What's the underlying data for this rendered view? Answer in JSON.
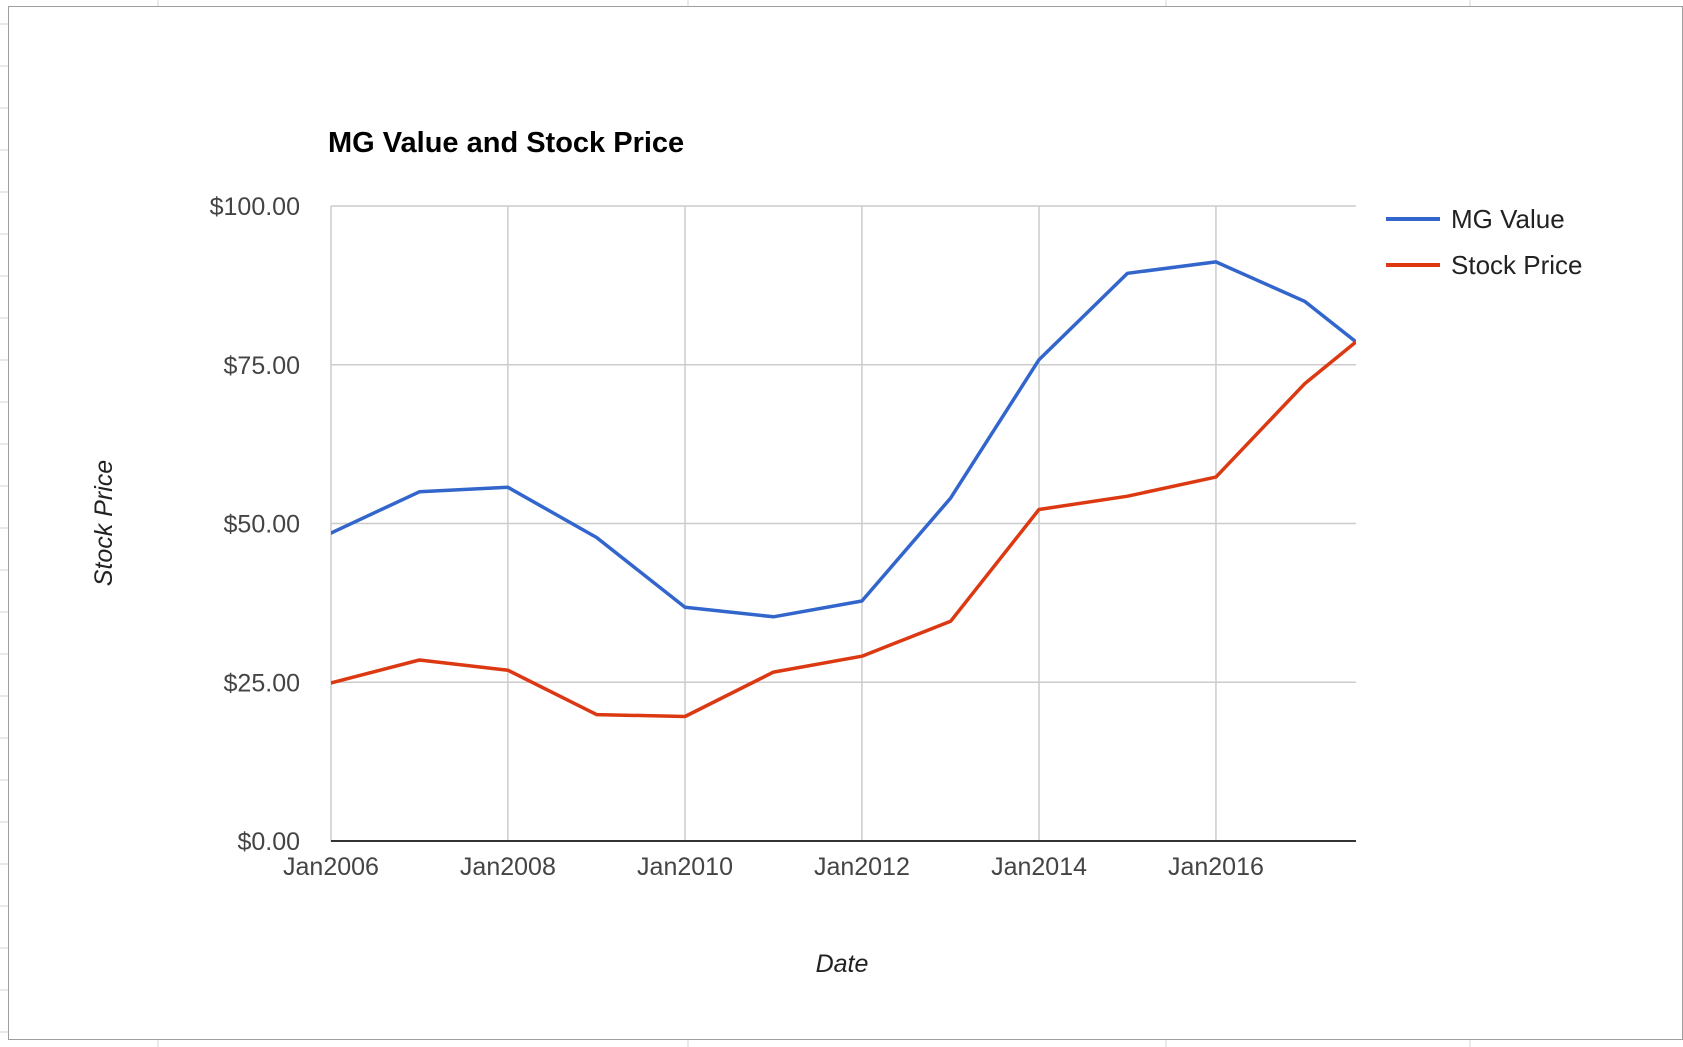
{
  "chart_data": {
    "type": "line",
    "title": "MG Value and Stock Price",
    "xlabel": "Date",
    "ylabel": "Stock Price",
    "ylim": [
      0,
      100
    ],
    "xlim": [
      "2006-01-01",
      "2017-08-01"
    ],
    "y_ticks": [
      0,
      25,
      50,
      75,
      100
    ],
    "y_tick_labels": [
      "$0.00",
      "$25.00",
      "$50.00",
      "$75.00",
      "$100.00"
    ],
    "x_ticks": [
      "2006-01-01",
      "2008-01-01",
      "2010-01-01",
      "2012-01-01",
      "2014-01-01",
      "2016-01-01"
    ],
    "x_tick_labels": [
      "Jan2006",
      "Jan2008",
      "Jan2010",
      "Jan2012",
      "Jan2014",
      "Jan2016"
    ],
    "grid": true,
    "legend_position": "right",
    "x": [
      "2006-01-01",
      "2007-01-01",
      "2008-01-01",
      "2009-01-01",
      "2010-01-01",
      "2011-01-01",
      "2012-01-01",
      "2013-01-01",
      "2014-01-01",
      "2015-01-01",
      "2016-01-01",
      "2017-01-01",
      "2017-08-01"
    ],
    "series": [
      {
        "name": "MG Value",
        "color": "#3366cc",
        "values": [
          48.5,
          55.0,
          55.7,
          47.8,
          36.8,
          35.3,
          37.8,
          54.0,
          75.8,
          89.4,
          91.2,
          85.0,
          78.6
        ]
      },
      {
        "name": "Stock Price",
        "color": "#dc3912",
        "values": [
          24.9,
          28.5,
          26.9,
          19.9,
          19.6,
          26.6,
          29.1,
          34.6,
          52.2,
          54.3,
          57.3,
          72.0,
          78.6
        ]
      }
    ]
  }
}
